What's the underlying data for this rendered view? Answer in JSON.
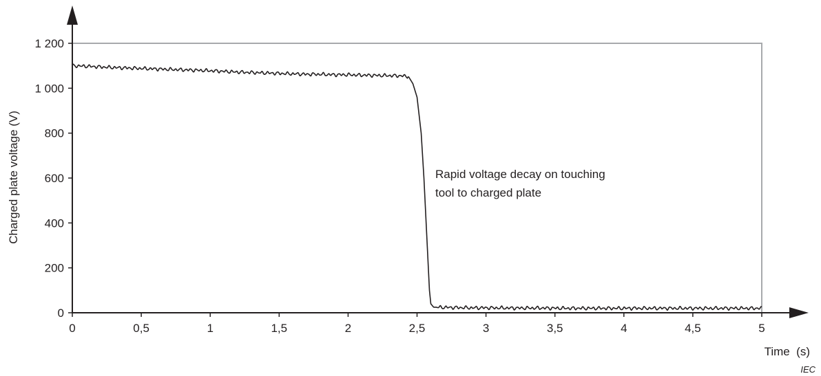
{
  "chart_data": {
    "type": "line",
    "xlabel": "Time  (s)",
    "ylabel": "Charged plate voltage  (V)",
    "xlim": [
      0,
      5
    ],
    "ylim": [
      0,
      1200
    ],
    "x_ticks": [
      0,
      0.5,
      1,
      1.5,
      2,
      2.5,
      3,
      3.5,
      4,
      4.5,
      5
    ],
    "x_tick_labels": [
      "0",
      "0,5",
      "1",
      "1,5",
      "2",
      "2,5",
      "3",
      "3,5",
      "4",
      "4,5",
      "5"
    ],
    "y_ticks": [
      0,
      200,
      400,
      600,
      800,
      1000,
      1200
    ],
    "y_tick_labels": [
      "0",
      "200",
      "400",
      "600",
      "800",
      "1 000",
      "1 200"
    ],
    "grid": false,
    "legend": "none",
    "frame": true,
    "annotation": {
      "lines": [
        "Rapid voltage decay on touching",
        "tool to charged plate"
      ],
      "at": [
        2.63,
        620
      ]
    },
    "credit": "IEC",
    "series": [
      {
        "x": [
          0,
          0.1,
          0.2,
          0.3,
          0.4,
          0.5,
          0.6,
          0.7,
          0.8,
          0.9,
          1.0,
          1.1,
          1.2,
          1.3,
          1.4,
          1.5,
          1.6,
          1.7,
          1.8,
          1.9,
          2.0,
          2.1,
          2.2,
          2.3,
          2.4,
          2.44,
          2.47,
          2.5,
          2.53,
          2.55,
          2.57,
          2.59,
          2.6,
          2.62,
          2.7,
          2.8,
          2.9,
          3.0,
          3.2,
          3.4,
          3.6,
          3.8,
          4.0,
          4.2,
          4.4,
          4.6,
          4.8,
          5.0
        ],
        "y": [
          1100,
          1098,
          1095,
          1092,
          1090,
          1088,
          1086,
          1084,
          1082,
          1080,
          1078,
          1075,
          1072,
          1070,
          1068,
          1066,
          1064,
          1062,
          1062,
          1060,
          1060,
          1058,
          1057,
          1056,
          1055,
          1050,
          1020,
          960,
          800,
          600,
          350,
          100,
          40,
          25,
          24,
          23,
          22,
          22,
          21,
          21,
          20,
          20,
          20,
          20,
          20,
          20,
          20,
          20
        ],
        "noise_amplitude": 9,
        "color": "#231f20"
      }
    ]
  }
}
